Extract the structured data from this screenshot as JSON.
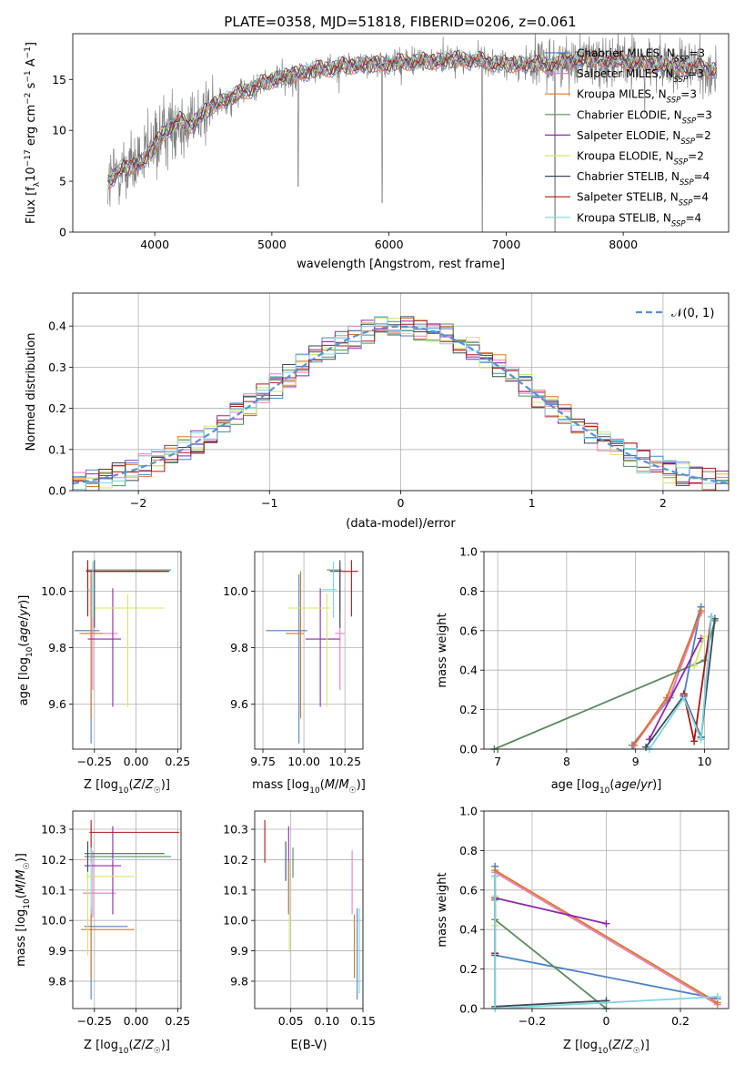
{
  "chart_data": [
    {
      "id": "spectrum",
      "type": "line",
      "title": "PLATE=0358, MJD=51818, FIBERID=0206, z=0.061",
      "xlabel": "wavelength [Angstrom, rest frame]",
      "ylabel": "Flux [f_λ10^-17 erg cm^-2 s^-1 A^-1]",
      "xlim": [
        3300,
        8900
      ],
      "ylim": [
        0,
        19.5
      ],
      "xticks": [
        4000,
        5000,
        6000,
        7000,
        8000
      ],
      "yticks": [
        0,
        5,
        10,
        15
      ],
      "legend_position": "upper-right",
      "data_color": "#808080",
      "model_envelope": {
        "x": [
          3600,
          3700,
          3800,
          3900,
          4000,
          4100,
          4200,
          4300,
          4400,
          4500,
          4600,
          4700,
          4800,
          4900,
          5000,
          5200,
          5400,
          5600,
          5800,
          6000,
          6200,
          6400,
          6600,
          6800,
          7000,
          7200,
          7400,
          7600,
          7800,
          8000,
          8200,
          8400,
          8600,
          8800
        ],
        "y": [
          5.0,
          6.0,
          6.5,
          7.0,
          8.5,
          10.0,
          11.0,
          10.5,
          11.5,
          12.5,
          13.0,
          13.5,
          14.0,
          14.5,
          15.0,
          15.5,
          16.0,
          16.3,
          16.5,
          16.5,
          16.8,
          16.8,
          17.0,
          16.8,
          16.5,
          16.5,
          16.5,
          17.0,
          17.0,
          16.8,
          16.5,
          16.3,
          16.2,
          16.0
        ]
      },
      "series": [
        {
          "name": "Chabrier MILES, N_SSP=3",
          "label_main": "Chabrier MILES, N",
          "label_sub": "SSP",
          "label_tail": "=3",
          "color": "#4c82c3"
        },
        {
          "name": "Salpeter MILES, N_SSP=3",
          "label_main": "Salpeter MILES, N",
          "label_sub": "SSP",
          "label_tail": "=3",
          "color": "#e87fbd"
        },
        {
          "name": "Kroupa MILES, N_SSP=3",
          "label_main": "Kroupa MILES, N",
          "label_sub": "SSP",
          "label_tail": "=3",
          "color": "#d9772b"
        },
        {
          "name": "Chabrier ELODIE, N_SSP=3",
          "label_main": "Chabrier ELODIE, N",
          "label_sub": "SSP",
          "label_tail": "=3",
          "color": "#5a8a5e"
        },
        {
          "name": "Salpeter ELODIE, N_SSP=2",
          "label_main": "Salpeter ELODIE, N",
          "label_sub": "SSP",
          "label_tail": "=2",
          "color": "#8e2aa8"
        },
        {
          "name": "Kroupa ELODIE, N_SSP=2",
          "label_main": "Kroupa ELODIE, N",
          "label_sub": "SSP",
          "label_tail": "=2",
          "color": "#d6e566"
        },
        {
          "name": "Chabrier STELIB, N_SSP=4",
          "label_main": "Chabrier STELIB, N",
          "label_sub": "SSP",
          "label_tail": "=4",
          "color": "#3d4a5c"
        },
        {
          "name": "Salpeter STELIB, N_SSP=4",
          "label_main": "Salpeter STELIB, N",
          "label_sub": "SSP",
          "label_tail": "=4",
          "color": "#b01515"
        },
        {
          "name": "Kroupa STELIB, N_SSP=4",
          "label_main": "Kroupa STELIB, N",
          "label_sub": "SSP",
          "label_tail": "=4",
          "color": "#7ed6e0"
        }
      ]
    },
    {
      "id": "residuals",
      "type": "histogram",
      "xlabel": "(data-model)/error",
      "ylabel": "Normed distribution",
      "xlim": [
        -2.5,
        2.5
      ],
      "ylim": [
        0,
        0.48
      ],
      "xticks": [
        -2,
        -1,
        0,
        1,
        2
      ],
      "yticks": [
        0.0,
        0.1,
        0.2,
        0.3,
        0.4
      ],
      "bin_width": 0.1,
      "legend_label": "𝒩(0, 1)",
      "gaussian_color": "#5b8fd6",
      "grid": true
    },
    {
      "id": "age-vs-z",
      "type": "errorbar",
      "xlabel": "Z [log10(Z/Z☉)]",
      "ylabel": "age  [log10(age/yr)]",
      "xlim": [
        -0.38,
        0.27
      ],
      "ylim": [
        9.44,
        10.14
      ],
      "xticks": [
        -0.25,
        0.0,
        0.25
      ],
      "yticks": [
        9.6,
        9.8,
        10.0
      ],
      "points": [
        {
          "series": 0,
          "x": -0.27,
          "y": 9.86,
          "xerr": [
            0.1,
            0.05
          ],
          "yerr": [
            0.4,
            0.2
          ]
        },
        {
          "series": 1,
          "x": -0.26,
          "y": 9.85,
          "xerr": [
            0.06,
            0.15
          ],
          "yerr": [
            0.2,
            0.25
          ]
        },
        {
          "series": 2,
          "x": -0.27,
          "y": 9.85,
          "xerr": [
            0.07,
            0.07
          ],
          "yerr": [
            0.3,
            0.22
          ]
        },
        {
          "series": 3,
          "x": -0.29,
          "y": 10.075,
          "xerr": [
            0.01,
            0.5
          ],
          "yerr": [
            0.15,
            0.01
          ]
        },
        {
          "series": 4,
          "x": -0.14,
          "y": 9.83,
          "xerr": [
            0.15,
            0.05
          ],
          "yerr": [
            0.24,
            0.18
          ]
        },
        {
          "series": 5,
          "x": -0.05,
          "y": 9.94,
          "xerr": [
            0.22,
            0.22
          ],
          "yerr": [
            0.35,
            0.05
          ]
        },
        {
          "series": 6,
          "x": -0.25,
          "y": 10.07,
          "xerr": [
            0.03,
            0.45
          ],
          "yerr": [
            0.2,
            0.04
          ]
        },
        {
          "series": 7,
          "x": -0.29,
          "y": 10.07,
          "xerr": [
            0.01,
            0.48
          ],
          "yerr": [
            0.16,
            0.04
          ]
        },
        {
          "series": 8,
          "x": -0.26,
          "y": 10.005,
          "xerr": [
            0.03,
            0.01
          ],
          "yerr": [
            0.1,
            0.1
          ]
        }
      ]
    },
    {
      "id": "age-vs-mass",
      "type": "errorbar",
      "xlabel": "mass [log10(M/M☉)]",
      "ylabel": "",
      "xlim": [
        9.7,
        10.36
      ],
      "ylim": [
        9.44,
        10.14
      ],
      "xticks": [
        9.75,
        10.0,
        10.25
      ],
      "yticks": [
        9.6,
        9.8,
        10.0
      ],
      "points": [
        {
          "series": 0,
          "x": 9.97,
          "y": 9.86,
          "xerr": [
            0.2,
            0.05
          ],
          "yerr": [
            0.4,
            0.2
          ]
        },
        {
          "series": 1,
          "x": 10.22,
          "y": 9.85,
          "xerr": [
            0.03,
            0.03
          ],
          "yerr": [
            0.2,
            0.25
          ]
        },
        {
          "series": 2,
          "x": 9.98,
          "y": 9.85,
          "xerr": [
            0.09,
            0.02
          ],
          "yerr": [
            0.3,
            0.22
          ]
        },
        {
          "series": 3,
          "x": 10.22,
          "y": 10.075,
          "xerr": [
            0.08,
            0.01
          ],
          "yerr": [
            0.15,
            0.01
          ]
        },
        {
          "series": 4,
          "x": 10.1,
          "y": 9.83,
          "xerr": [
            0.09,
            0.12
          ],
          "yerr": [
            0.24,
            0.18
          ]
        },
        {
          "series": 5,
          "x": 10.14,
          "y": 9.94,
          "xerr": [
            0.24,
            0.02
          ],
          "yerr": [
            0.35,
            0.05
          ]
        },
        {
          "series": 6,
          "x": 10.22,
          "y": 10.07,
          "xerr": [
            0.06,
            0.01
          ],
          "yerr": [
            0.2,
            0.04
          ]
        },
        {
          "series": 7,
          "x": 10.29,
          "y": 10.07,
          "xerr": [
            0.06,
            0.04
          ],
          "yerr": [
            0.16,
            0.04
          ]
        },
        {
          "series": 8,
          "x": 10.18,
          "y": 10.005,
          "xerr": [
            0.07,
            0.02
          ],
          "yerr": [
            0.1,
            0.1
          ]
        }
      ]
    },
    {
      "id": "weight-vs-age",
      "type": "line",
      "xlabel": "age  [log10(age/yr)]",
      "ylabel": "mass weight",
      "xlim": [
        6.8,
        10.35
      ],
      "ylim": [
        0,
        1
      ],
      "xticks": [
        7,
        8,
        9,
        10
      ],
      "yticks": [
        0.0,
        0.2,
        0.4,
        0.6,
        0.8,
        1.0
      ],
      "series_points": [
        {
          "series": 0,
          "x": [
            8.95,
            9.5,
            9.95,
            9.7,
            9.95
          ],
          "y": [
            0.02,
            0.26,
            0.72,
            0.27,
            0.06
          ]
        },
        {
          "series": 1,
          "x": [
            8.98,
            9.5,
            9.95
          ],
          "y": [
            0.02,
            0.27,
            0.69
          ]
        },
        {
          "series": 2,
          "x": [
            8.97,
            9.45,
            9.95
          ],
          "y": [
            0.02,
            0.26,
            0.7
          ]
        },
        {
          "series": 3,
          "x": [
            6.95,
            10.0,
            10.15
          ],
          "y": [
            0.0,
            0.45,
            0.65
          ]
        },
        {
          "series": 4,
          "x": [
            9.2,
            9.95
          ],
          "y": [
            0.05,
            0.56
          ]
        },
        {
          "series": 5,
          "x": [
            9.85,
            10.0
          ],
          "y": [
            0.42,
            0.57
          ]
        },
        {
          "series": 6,
          "x": [
            9.15,
            9.7,
            9.95,
            10.15
          ],
          "y": [
            0.01,
            0.27,
            0.06,
            0.66
          ]
        },
        {
          "series": 7,
          "x": [
            9.7,
            9.85,
            10.1
          ],
          "y": [
            0.28,
            0.04,
            0.67
          ]
        },
        {
          "series": 8,
          "x": [
            9.2,
            9.7,
            9.95,
            10.1
          ],
          "y": [
            0.0,
            0.26,
            0.05,
            0.67
          ]
        }
      ]
    },
    {
      "id": "mass-vs-z",
      "type": "errorbar",
      "xlabel": "Z [log10(Z/Z☉)]",
      "ylabel": "mass [log10(M/M☉)]",
      "xlim": [
        -0.38,
        0.27
      ],
      "ylim": [
        9.71,
        10.36
      ],
      "xticks": [
        -0.25,
        0.0,
        0.25
      ],
      "yticks": [
        9.8,
        9.9,
        10.0,
        10.1,
        10.2,
        10.3
      ],
      "points": [
        {
          "series": 0,
          "x": -0.27,
          "y": 9.98,
          "xerr": [
            0.04,
            0.22
          ],
          "yerr": [
            0.24,
            0.06
          ]
        },
        {
          "series": 1,
          "x": -0.26,
          "y": 10.09,
          "xerr": [
            0.06,
            0.14
          ],
          "yerr": [
            0.08,
            0.14
          ]
        },
        {
          "series": 2,
          "x": -0.27,
          "y": 9.97,
          "xerr": [
            0.06,
            0.26
          ],
          "yerr": [
            0.16,
            0.06
          ]
        },
        {
          "series": 3,
          "x": -0.29,
          "y": 10.21,
          "xerr": [
            0.02,
            0.5
          ],
          "yerr": [
            0.07,
            0.05
          ]
        },
        {
          "series": 4,
          "x": -0.14,
          "y": 10.18,
          "xerr": [
            0.17,
            0.05
          ],
          "yerr": [
            0.16,
            0.13
          ]
        },
        {
          "series": 5,
          "x": -0.29,
          "y": 10.145,
          "xerr": [
            0.01,
            0.28
          ],
          "yerr": [
            0.26,
            0.06
          ]
        },
        {
          "series": 6,
          "x": -0.29,
          "y": 10.22,
          "xerr": [
            0.02,
            0.46
          ],
          "yerr": [
            0.06,
            0.04
          ]
        },
        {
          "series": 7,
          "x": -0.27,
          "y": 10.29,
          "xerr": [
            0.01,
            0.53
          ],
          "yerr": [
            0.1,
            0.04
          ]
        },
        {
          "series": 8,
          "x": -0.27,
          "y": 10.2,
          "xerr": [
            0.01,
            0.49
          ],
          "yerr": [
            0.18,
            0.04
          ]
        }
      ]
    },
    {
      "id": "mass-vs-ebv",
      "type": "errorbar",
      "xlabel": "E(B-V)",
      "ylabel": "",
      "xlim": [
        0.0,
        0.15
      ],
      "ylim": [
        9.71,
        10.36
      ],
      "xticks": [
        0.05,
        0.1,
        0.15
      ],
      "yticks": [
        9.8,
        9.9,
        10.0,
        10.1,
        10.2,
        10.3
      ],
      "points": [
        {
          "series": 0,
          "x": 0.142,
          "y": 9.98,
          "xerr": [
            0.0,
            0.0
          ],
          "yerr": [
            0.24,
            0.06
          ]
        },
        {
          "series": 1,
          "x": 0.135,
          "y": 10.09,
          "xerr": [
            0.0,
            0.0
          ],
          "yerr": [
            0.07,
            0.14
          ]
        },
        {
          "series": 2,
          "x": 0.138,
          "y": 9.97,
          "xerr": [
            0.0,
            0.0
          ],
          "yerr": [
            0.16,
            0.05
          ]
        },
        {
          "series": 3,
          "x": 0.053,
          "y": 10.21,
          "xerr": [
            0.0,
            0.0
          ],
          "yerr": [
            0.07,
            0.03
          ]
        },
        {
          "series": 4,
          "x": 0.047,
          "y": 10.18,
          "xerr": [
            0.0,
            0.0
          ],
          "yerr": [
            0.16,
            0.13
          ]
        },
        {
          "series": 5,
          "x": 0.048,
          "y": 10.145,
          "xerr": [
            0.0,
            0.0
          ],
          "yerr": [
            0.25,
            0.05
          ]
        },
        {
          "series": 6,
          "x": 0.043,
          "y": 10.2,
          "xerr": [
            0.0,
            0.0
          ],
          "yerr": [
            0.07,
            0.06
          ]
        },
        {
          "series": 7,
          "x": 0.014,
          "y": 10.29,
          "xerr": [
            0.0,
            0.0
          ],
          "yerr": [
            0.1,
            0.04
          ]
        },
        {
          "series": 8,
          "x": 0.145,
          "y": 9.98,
          "xerr": [
            0.0,
            0.0
          ],
          "yerr": [
            0.22,
            0.06
          ]
        }
      ]
    },
    {
      "id": "weight-vs-z",
      "type": "line",
      "xlabel": "Z [log10(Z/Z☉)]",
      "ylabel": "mass weight",
      "xlim": [
        -0.33,
        0.33
      ],
      "ylim": [
        0,
        1
      ],
      "xticks": [
        -0.2,
        0.0,
        0.2
      ],
      "yticks": [
        0.0,
        0.2,
        0.4,
        0.6,
        0.8,
        1.0
      ],
      "series_points": [
        {
          "series": 0,
          "x": [
            -0.3,
            -0.3,
            0.3
          ],
          "y": [
            0.72,
            0.27,
            0.05
          ]
        },
        {
          "series": 1,
          "x": [
            -0.3,
            0.3
          ],
          "y": [
            0.69,
            0.02
          ]
        },
        {
          "series": 2,
          "x": [
            -0.3,
            0.3
          ],
          "y": [
            0.7,
            0.03
          ]
        },
        {
          "series": 3,
          "x": [
            -0.3,
            -0.3,
            0.0
          ],
          "y": [
            0.55,
            0.45,
            0.0
          ]
        },
        {
          "series": 4,
          "x": [
            -0.3,
            0.0
          ],
          "y": [
            0.56,
            0.43
          ]
        },
        {
          "series": 5,
          "x": [
            -0.3,
            -0.3
          ],
          "y": [
            0.57,
            0.42
          ]
        },
        {
          "series": 6,
          "x": [
            -0.3,
            -0.3,
            0.0
          ],
          "y": [
            0.27,
            0.01,
            0.04
          ]
        },
        {
          "series": 7,
          "x": [
            -0.3,
            -0.3
          ],
          "y": [
            0.67,
            0.28
          ]
        },
        {
          "series": 8,
          "x": [
            -0.3,
            -0.3,
            0.3
          ],
          "y": [
            0.67,
            0.0,
            0.06
          ]
        }
      ]
    }
  ]
}
